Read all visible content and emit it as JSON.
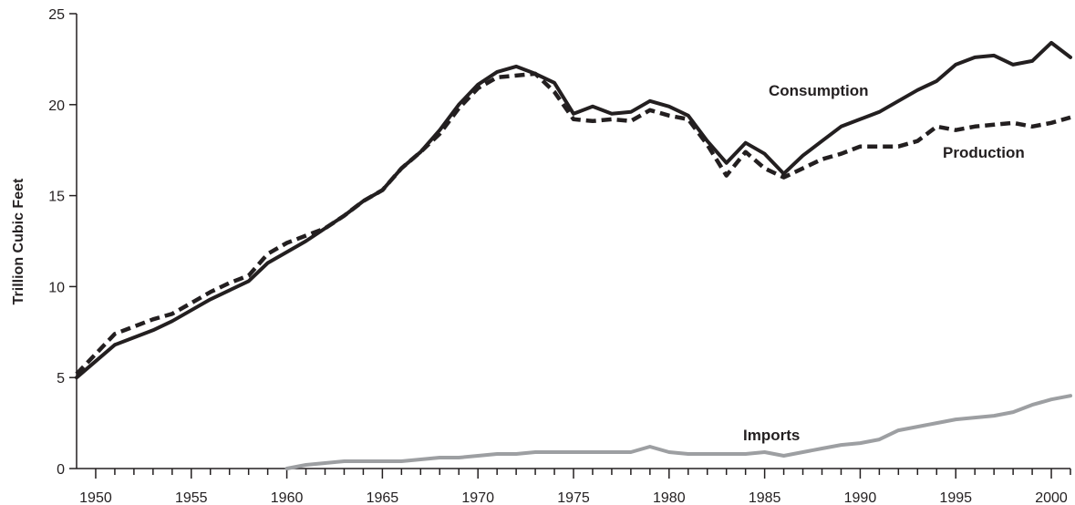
{
  "chart_data": {
    "type": "line",
    "title": "",
    "xlabel": "",
    "ylabel": "Trillion Cubic Feet",
    "xlim": [
      1949,
      2001
    ],
    "ylim": [
      0,
      25
    ],
    "x_ticks": [
      1950,
      1955,
      1960,
      1965,
      1970,
      1975,
      1980,
      1985,
      1990,
      1995,
      2000
    ],
    "x_tick_labels": [
      "1950",
      "1955",
      "1960",
      "1965",
      "1970",
      "1975",
      "1980",
      "1985",
      "1990",
      "1995",
      "2000"
    ],
    "y_ticks": [
      0,
      5,
      10,
      15,
      20,
      25
    ],
    "y_tick_labels": [
      "0",
      "5",
      "10",
      "15",
      "20",
      "25"
    ],
    "grid": false,
    "legend": "none",
    "series": [
      {
        "name": "Consumption",
        "style": "solid",
        "color": "#231f20",
        "points": [
          [
            1949,
            5.0
          ],
          [
            1950,
            5.9
          ],
          [
            1951,
            6.8
          ],
          [
            1952,
            7.2
          ],
          [
            1953,
            7.6
          ],
          [
            1954,
            8.1
          ],
          [
            1955,
            8.7
          ],
          [
            1956,
            9.3
          ],
          [
            1957,
            9.8
          ],
          [
            1958,
            10.3
          ],
          [
            1959,
            11.3
          ],
          [
            1960,
            11.9
          ],
          [
            1961,
            12.5
          ],
          [
            1962,
            13.2
          ],
          [
            1963,
            13.9
          ],
          [
            1964,
            14.7
          ],
          [
            1965,
            15.3
          ],
          [
            1966,
            16.5
          ],
          [
            1967,
            17.4
          ],
          [
            1968,
            18.6
          ],
          [
            1969,
            20.0
          ],
          [
            1970,
            21.1
          ],
          [
            1971,
            21.8
          ],
          [
            1972,
            22.1
          ],
          [
            1973,
            21.7
          ],
          [
            1974,
            21.2
          ],
          [
            1975,
            19.5
          ],
          [
            1976,
            19.9
          ],
          [
            1977,
            19.5
          ],
          [
            1978,
            19.6
          ],
          [
            1979,
            20.2
          ],
          [
            1980,
            19.9
          ],
          [
            1981,
            19.4
          ],
          [
            1982,
            18.0
          ],
          [
            1983,
            16.8
          ],
          [
            1984,
            17.9
          ],
          [
            1985,
            17.3
          ],
          [
            1986,
            16.2
          ],
          [
            1987,
            17.2
          ],
          [
            1988,
            18.0
          ],
          [
            1989,
            18.8
          ],
          [
            1990,
            19.2
          ],
          [
            1991,
            19.6
          ],
          [
            1992,
            20.2
          ],
          [
            1993,
            20.8
          ],
          [
            1994,
            21.3
          ],
          [
            1995,
            22.2
          ],
          [
            1996,
            22.6
          ],
          [
            1997,
            22.7
          ],
          [
            1998,
            22.2
          ],
          [
            1999,
            22.4
          ],
          [
            2000,
            23.4
          ],
          [
            2001,
            22.6
          ]
        ]
      },
      {
        "name": "Production",
        "style": "dashed",
        "color": "#231f20",
        "points": [
          [
            1949,
            5.2
          ],
          [
            1950,
            6.3
          ],
          [
            1951,
            7.4
          ],
          [
            1952,
            7.8
          ],
          [
            1953,
            8.2
          ],
          [
            1954,
            8.5
          ],
          [
            1955,
            9.1
          ],
          [
            1956,
            9.7
          ],
          [
            1957,
            10.2
          ],
          [
            1958,
            10.6
          ],
          [
            1959,
            11.8
          ],
          [
            1960,
            12.4
          ],
          [
            1961,
            12.8
          ],
          [
            1962,
            13.2
          ],
          [
            1963,
            13.9
          ],
          [
            1964,
            14.7
          ],
          [
            1965,
            15.3
          ],
          [
            1966,
            16.5
          ],
          [
            1967,
            17.4
          ],
          [
            1968,
            18.4
          ],
          [
            1969,
            19.8
          ],
          [
            1970,
            20.9
          ],
          [
            1971,
            21.5
          ],
          [
            1972,
            21.6
          ],
          [
            1973,
            21.7
          ],
          [
            1974,
            20.7
          ],
          [
            1975,
            19.2
          ],
          [
            1976,
            19.1
          ],
          [
            1977,
            19.2
          ],
          [
            1978,
            19.1
          ],
          [
            1979,
            19.7
          ],
          [
            1980,
            19.4
          ],
          [
            1981,
            19.2
          ],
          [
            1982,
            17.8
          ],
          [
            1983,
            16.1
          ],
          [
            1984,
            17.4
          ],
          [
            1985,
            16.5
          ],
          [
            1986,
            16.0
          ],
          [
            1987,
            16.5
          ],
          [
            1988,
            17.0
          ],
          [
            1989,
            17.3
          ],
          [
            1990,
            17.7
          ],
          [
            1991,
            17.7
          ],
          [
            1992,
            17.7
          ],
          [
            1993,
            18.0
          ],
          [
            1994,
            18.8
          ],
          [
            1995,
            18.6
          ],
          [
            1996,
            18.8
          ],
          [
            1997,
            18.9
          ],
          [
            1998,
            19.0
          ],
          [
            1999,
            18.8
          ],
          [
            2000,
            19.0
          ],
          [
            2001,
            19.3
          ]
        ]
      },
      {
        "name": "Imports",
        "style": "solid",
        "color": "#9d9fa2",
        "points": [
          [
            1960,
            0.0
          ],
          [
            1961,
            0.2
          ],
          [
            1962,
            0.3
          ],
          [
            1963,
            0.4
          ],
          [
            1964,
            0.4
          ],
          [
            1965,
            0.4
          ],
          [
            1966,
            0.4
          ],
          [
            1967,
            0.5
          ],
          [
            1968,
            0.6
          ],
          [
            1969,
            0.6
          ],
          [
            1970,
            0.7
          ],
          [
            1971,
            0.8
          ],
          [
            1972,
            0.8
          ],
          [
            1973,
            0.9
          ],
          [
            1974,
            0.9
          ],
          [
            1975,
            0.9
          ],
          [
            1976,
            0.9
          ],
          [
            1977,
            0.9
          ],
          [
            1978,
            0.9
          ],
          [
            1979,
            1.2
          ],
          [
            1980,
            0.9
          ],
          [
            1981,
            0.8
          ],
          [
            1982,
            0.8
          ],
          [
            1983,
            0.8
          ],
          [
            1984,
            0.8
          ],
          [
            1985,
            0.9
          ],
          [
            1986,
            0.7
          ],
          [
            1987,
            0.9
          ],
          [
            1988,
            1.1
          ],
          [
            1989,
            1.3
          ],
          [
            1990,
            1.4
          ],
          [
            1991,
            1.6
          ],
          [
            1992,
            2.1
          ],
          [
            1993,
            2.3
          ],
          [
            1994,
            2.5
          ],
          [
            1995,
            2.7
          ],
          [
            1996,
            2.8
          ],
          [
            1997,
            2.9
          ],
          [
            1998,
            3.1
          ],
          [
            1999,
            3.5
          ],
          [
            2000,
            3.8
          ],
          [
            2001,
            4.0
          ]
        ]
      }
    ]
  }
}
